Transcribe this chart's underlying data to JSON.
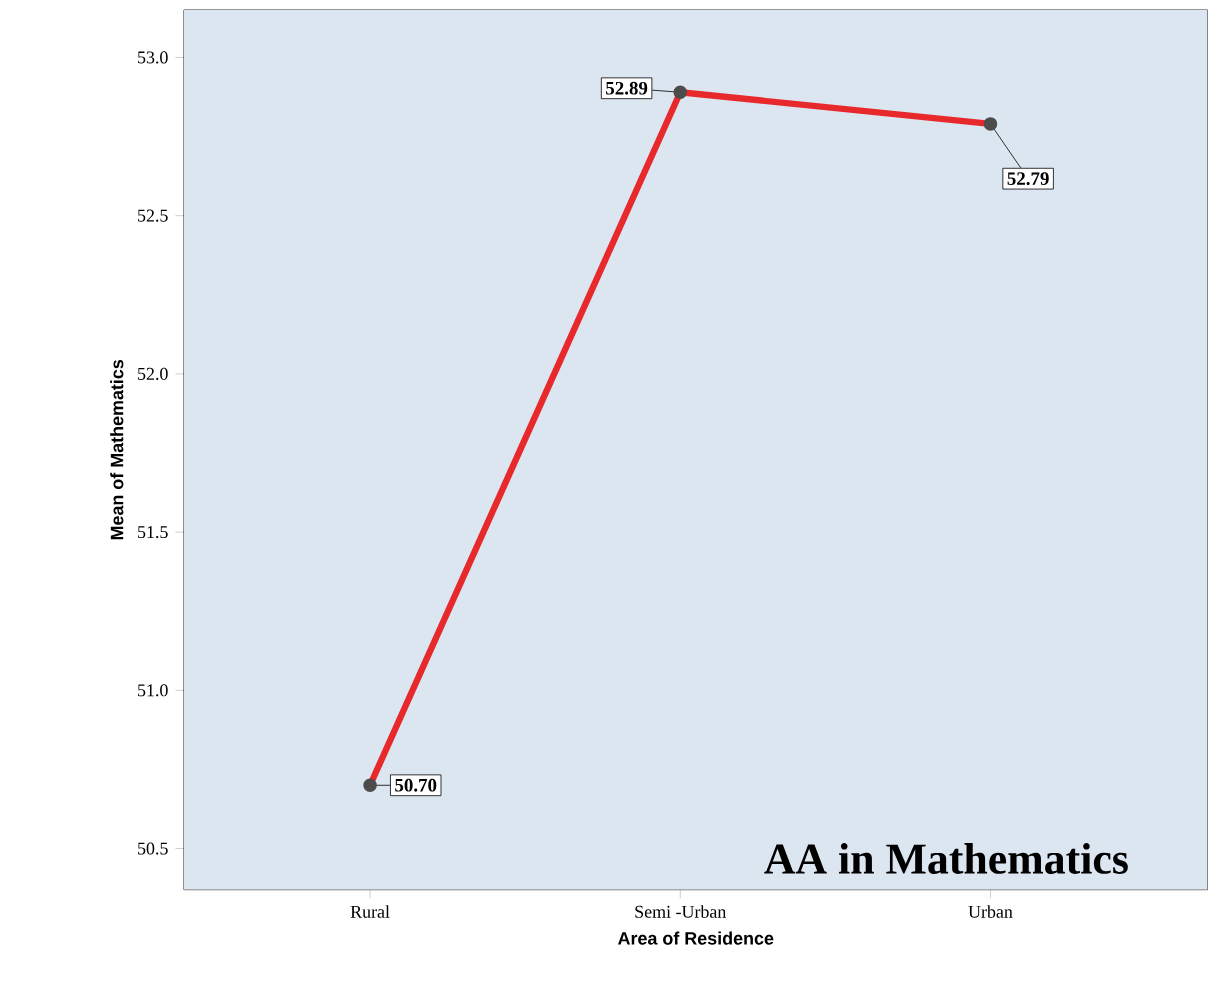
{
  "chart_data": {
    "type": "line",
    "xlabel": "Area of Residence",
    "ylabel": "Mean of Mathematics",
    "categories": [
      "Rural",
      "Semi -Urban",
      "Urban"
    ],
    "values": [
      50.7,
      52.89,
      52.79
    ],
    "value_labels": [
      "50.70",
      "52.89",
      "52.79"
    ],
    "color": "#e8292b",
    "marker": "circle",
    "line_style": "solid",
    "ylim": [
      50.37,
      53.15
    ],
    "yticks": [
      50.5,
      {
        "value": 51,
        "label": "51.0"
      },
      51.5,
      {
        "value": 52,
        "label": "52.0"
      },
      52.5,
      {
        "value": 53,
        "label": "53.0"
      }
    ],
    "annotations": [
      "AA in Mathematics"
    ]
  }
}
